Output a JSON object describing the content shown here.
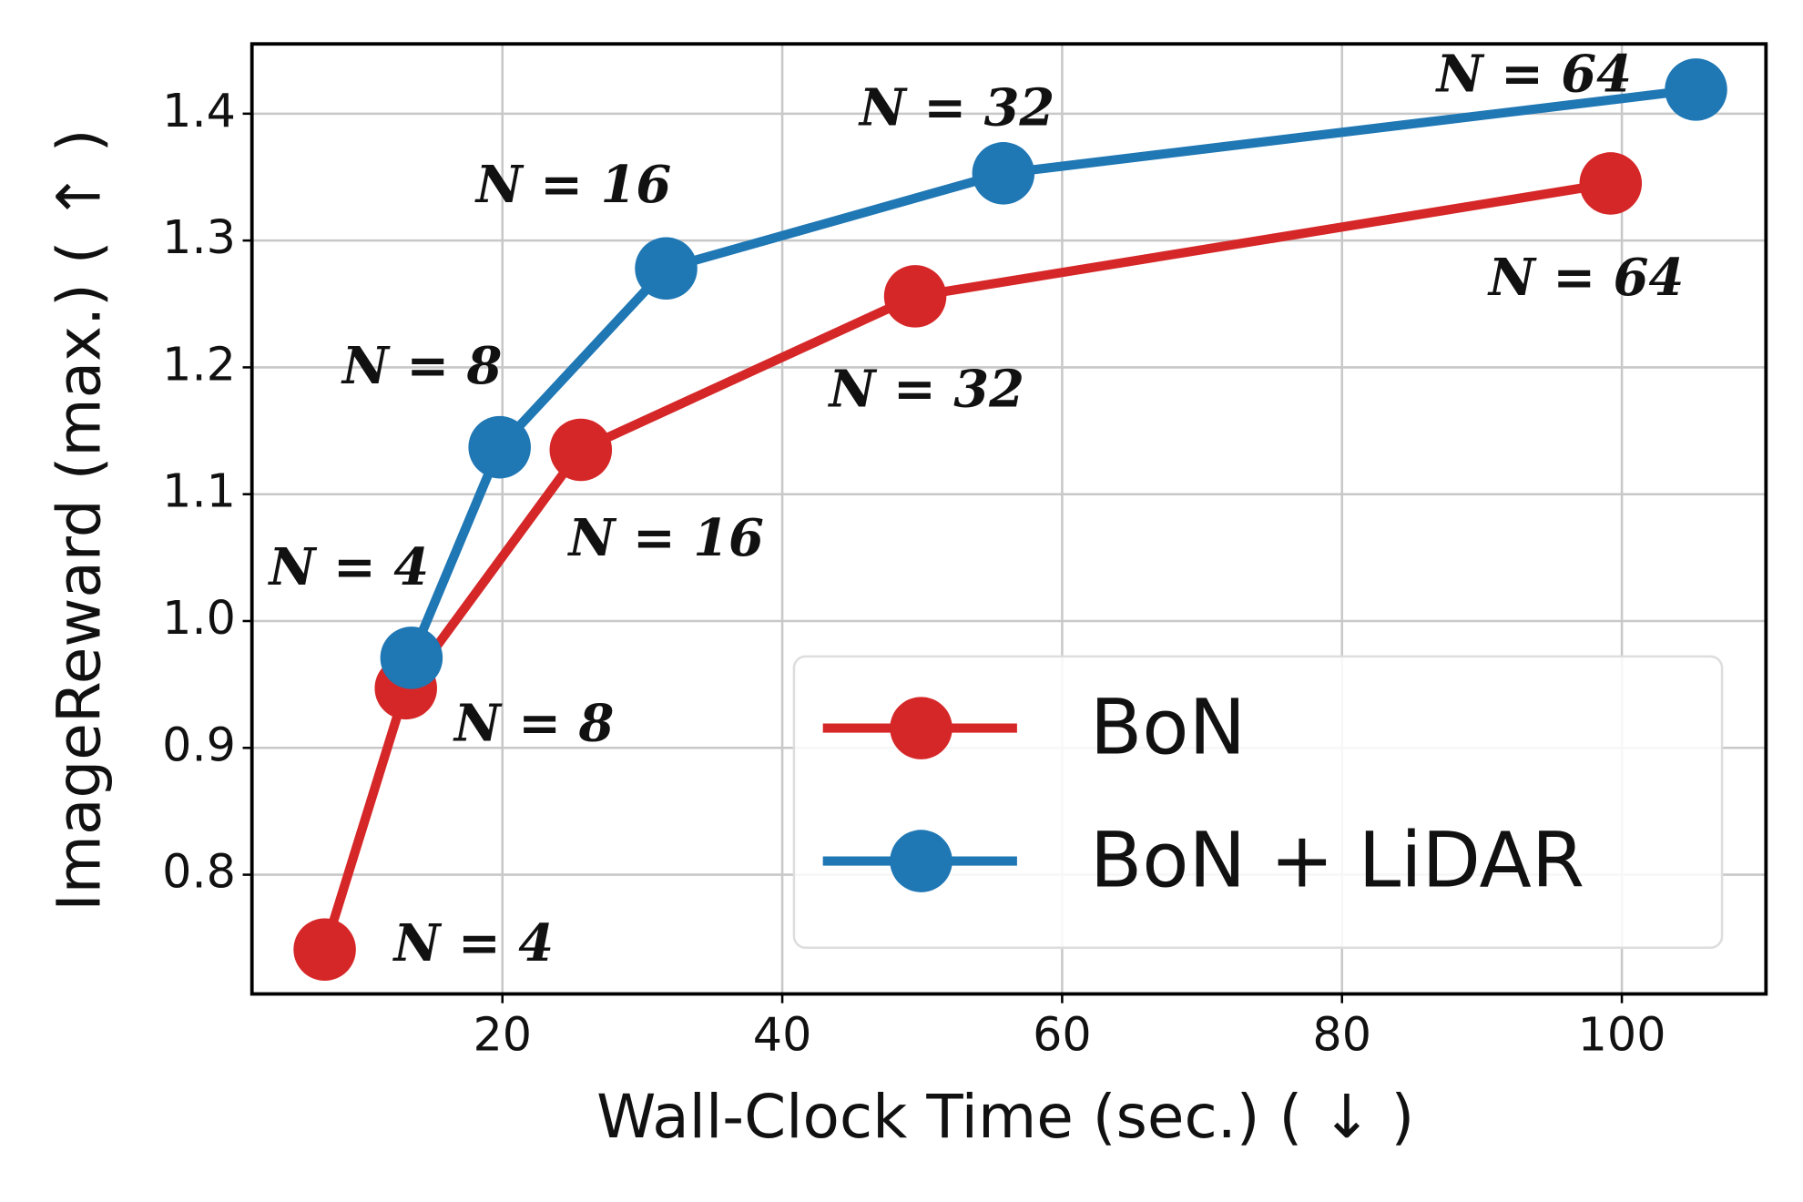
{
  "chart_data": {
    "type": "line",
    "xlabel": "Wall-Clock Time (sec.) ( ↓ )",
    "ylabel": "ImageReward (max.) ( ↑ )",
    "xlim": [
      2.1,
      110.3
    ],
    "ylim": [
      0.706,
      1.455
    ],
    "xticks": [
      20,
      40,
      60,
      80,
      100
    ],
    "yticks": [
      0.8,
      0.9,
      {
        "value": 1.0,
        "label": "1.0"
      },
      1.1,
      1.2,
      1.3,
      1.4
    ],
    "grid": true,
    "legend": "lower right",
    "series": [
      {
        "name": "BoN",
        "color": "#d62728",
        "x": [
          7.3,
          13.1,
          25.6,
          49.5,
          99.2
        ],
        "values": [
          0.741,
          0.947,
          1.135,
          1.256,
          1.345
        ],
        "point_labels": [
          "N = 4",
          "N = 8",
          "N = 16",
          "N = 32",
          "N = 64"
        ]
      },
      {
        "name": "BoN + LiDAR",
        "color": "#1f77b4",
        "x": [
          13.5,
          19.8,
          31.7,
          55.8,
          105.3
        ],
        "values": [
          0.971,
          1.137,
          1.278,
          1.353,
          1.419
        ],
        "point_labels": [
          "N = 4",
          "N = 8",
          "N = 16",
          "N = 32",
          "N = 64"
        ]
      }
    ]
  }
}
